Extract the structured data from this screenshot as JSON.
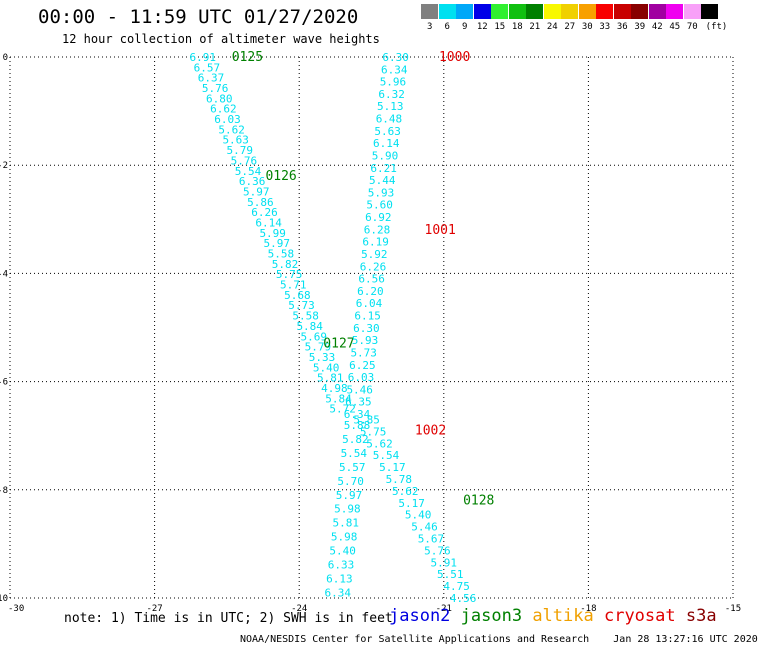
{
  "header": {
    "title": "00:00 - 11:59 UTC 01/27/2020",
    "subtitle": "12 hour collection of altimeter wave heights"
  },
  "legend": {
    "unit_label": "(ft)",
    "bins": [
      {
        "label": "3",
        "color": "#808080"
      },
      {
        "label": "6",
        "color": "#00e0f0"
      },
      {
        "label": "9",
        "color": "#00a8f8"
      },
      {
        "label": "12",
        "color": "#0000e8"
      },
      {
        "label": "15",
        "color": "#30f030"
      },
      {
        "label": "18",
        "color": "#10c010"
      },
      {
        "label": "21",
        "color": "#008000"
      },
      {
        "label": "24",
        "color": "#f8f800"
      },
      {
        "label": "27",
        "color": "#f0d000"
      },
      {
        "label": "30",
        "color": "#f8a000"
      },
      {
        "label": "33",
        "color": "#f80000"
      },
      {
        "label": "36",
        "color": "#c80000"
      },
      {
        "label": "39",
        "color": "#880000"
      },
      {
        "label": "42",
        "color": "#a000a0"
      },
      {
        "label": "45",
        "color": "#f000f0"
      },
      {
        "label": "70",
        "color": "#f8a0f8"
      },
      {
        "label": "",
        "color": "#000000"
      }
    ]
  },
  "note": "note: 1) Time is in UTC; 2) SWH is in feet",
  "satellites": [
    {
      "name": "jason2",
      "color": "#0000e0"
    },
    {
      "name": "jason3",
      "color": "#008000"
    },
    {
      "name": "altika",
      "color": "#f0a000"
    },
    {
      "name": "cryosat",
      "color": "#e00000"
    },
    {
      "name": "s3a",
      "color": "#880000"
    }
  ],
  "footer": "NOAA/NESDIS Center for Satellite Applications and Research    Jan 28 13:27:16 UTC 2020",
  "chart_data": {
    "type": "scatter",
    "xlim": [
      -30,
      -15
    ],
    "ylim": [
      -10,
      0
    ],
    "xticks": [
      "-30",
      "-27",
      "-24",
      "-21",
      "-18",
      "-15"
    ],
    "yticks": [
      "0",
      "-2",
      "-4",
      "-6",
      "-8",
      "-10"
    ],
    "grid": true,
    "value_color": "#00e0f0",
    "tracks": [
      {
        "satellite": "jason3",
        "label_color": "#008000",
        "time_labels": [
          {
            "text": "0125",
            "x": -25.4,
            "y": 0.0
          },
          {
            "text": "0126",
            "x": -24.7,
            "y": -2.2
          },
          {
            "text": "0127",
            "x": -23.5,
            "y": -5.3
          },
          {
            "text": "0128",
            "x": -20.6,
            "y": -8.2
          }
        ],
        "x_start": -26.0,
        "x_end": -23.1,
        "y_start": 0.0,
        "y_end": -6.5,
        "values": [
          "6.91",
          "6.57",
          "6.37",
          "5.76",
          "6.80",
          "6.62",
          "6.03",
          "5.62",
          "5.63",
          "5.79",
          "5.76",
          "5.54",
          "6.36",
          "5.97",
          "5.86",
          "6.26",
          "6.14",
          "5.99",
          "5.97",
          "5.58",
          "5.82",
          "5.75",
          "5.71",
          "5.68",
          "5.73",
          "5.58",
          "5.84",
          "5.69",
          "5.79",
          "5.33",
          "5.40",
          "5.81",
          "4.98",
          "5.84",
          "5.72"
        ]
      },
      {
        "satellite": "jason3",
        "label_color": "#008000",
        "time_labels": [],
        "x_start": -22.6,
        "x_end": -20.6,
        "y_start": -6.7,
        "y_end": -10.0,
        "values": [
          "5.85",
          "5.75",
          "5.62",
          "5.54",
          "5.17",
          "5.78",
          "5.62",
          "5.17",
          "5.40",
          "5.46",
          "5.67",
          "5.76",
          "5.91",
          "5.51",
          "4.75",
          "4.56"
        ]
      },
      {
        "satellite": "cryosat",
        "label_color": "#e00000",
        "time_labels": [
          {
            "text": "1000",
            "x": -21.1,
            "y": 0.0
          },
          {
            "text": "1001",
            "x": -21.4,
            "y": -3.2
          },
          {
            "text": "1002",
            "x": -21.6,
            "y": -6.9
          }
        ],
        "x_start": -22.0,
        "x_end": -22.8,
        "y_start": 0.0,
        "y_end": -6.6,
        "values": [
          "6.30",
          "6.34",
          "5.96",
          "6.32",
          "5.13",
          "6.48",
          "5.63",
          "6.14",
          "5.90",
          "6.21",
          "5.44",
          "5.93",
          "5.60",
          "6.92",
          "6.28",
          "6.19",
          "5.92",
          "6.26",
          "6.56",
          "6.20",
          "6.04",
          "6.15",
          "6.30",
          "5.93",
          "5.73",
          "6.25",
          "6.03",
          "5.46",
          "6.35",
          "6.34"
        ]
      },
      {
        "satellite": "cryosat",
        "label_color": "#e00000",
        "time_labels": [],
        "x_start": -22.8,
        "x_end": -23.2,
        "y_start": -6.8,
        "y_end": -9.9,
        "values": [
          "5.88",
          "5.82",
          "5.54",
          "5.57",
          "5.70",
          "5.97",
          "5.98",
          "5.81",
          "5.98",
          "5.40",
          "6.33",
          "6.13",
          "6.34"
        ]
      }
    ]
  }
}
